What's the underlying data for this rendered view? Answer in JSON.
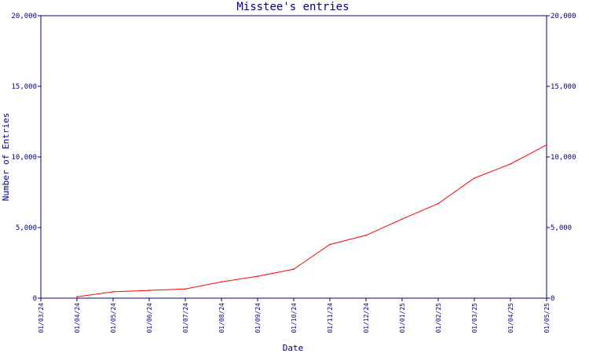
{
  "chart_data": {
    "type": "line",
    "title": "Misstee's entries",
    "xlabel": "Date",
    "ylabel": "Number of Entries",
    "ylim": [
      0,
      20000
    ],
    "y_ticks": [
      {
        "value": 0,
        "label": "0"
      },
      {
        "value": 5000,
        "label": "5,000"
      },
      {
        "value": 10000,
        "label": "10,000"
      },
      {
        "value": 15000,
        "label": "15,000"
      },
      {
        "value": 20000,
        "label": "20,000"
      }
    ],
    "x_ticks": [
      "01/03/24",
      "01/04/24",
      "01/05/24",
      "01/06/24",
      "01/07/24",
      "01/08/24",
      "01/09/24",
      "01/10/24",
      "01/11/24",
      "01/12/24",
      "01/01/25",
      "01/02/25",
      "01/03/25",
      "01/04/25",
      "01/05/25"
    ],
    "grid": false,
    "secondary_y_axis": true,
    "colors": {
      "axis": "#000080",
      "line": "#ff0000",
      "background": "#ffffff"
    },
    "series": [
      {
        "color": "#ff0000",
        "x": [
          "01/04/24",
          "01/05/24",
          "01/06/24",
          "01/07/24",
          "01/08/24",
          "01/09/24",
          "01/10/24",
          "01/11/24",
          "01/12/24",
          "01/01/25",
          "01/02/25",
          "01/03/25",
          "01/04/25",
          "01/05/25"
        ],
        "values": [
          100,
          450,
          550,
          650,
          1150,
          1550,
          2050,
          3800,
          4450,
          5600,
          6700,
          8500,
          9500,
          10850
        ]
      }
    ]
  }
}
